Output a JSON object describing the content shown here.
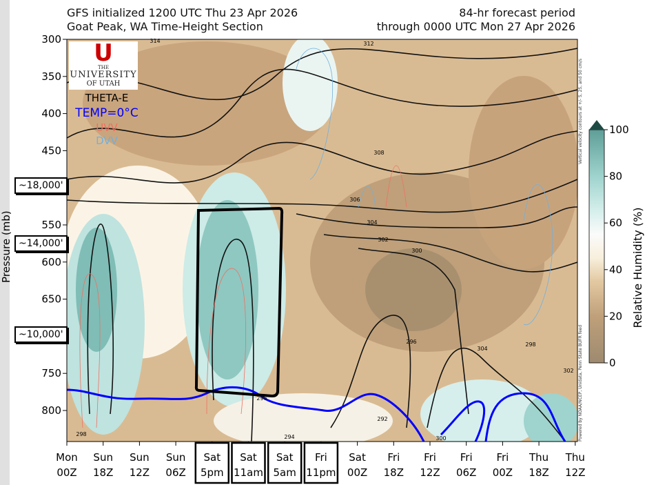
{
  "header": {
    "left_line1": "GFS initialized 1200 UTC Thu 23 Apr 2026",
    "left_line2": "Goat Peak, WA Time-Height Section",
    "right_line1": "84-hr forecast period",
    "right_line2": "through 0000 UTC Mon 27 Apr 2026"
  },
  "logo": {
    "line1": "THE",
    "line2": "UNIVERSITY",
    "line3": "OF UTAH"
  },
  "legend": {
    "theta_e": "THETA-E",
    "temp0": "TEMP=0°C",
    "uvv": "UVV",
    "dvv": "DVV",
    "colors": {
      "theta_e": "#000000",
      "temp0": "#0000ff",
      "uvv": "#f07060",
      "dvv": "#70b0e0"
    }
  },
  "annotations": [
    "~18,000'",
    "~14,000'",
    "~10,000'"
  ],
  "side_notes": {
    "vertical_velocity": "Vertical velocity contours at +/- 5, 25, and 50 cm/s",
    "credits": "Powered by NOAA/NCEP, Unidata, Penn State BUFR feed"
  },
  "chart_data": {
    "type": "heatmap",
    "title": "Goat Peak, WA Time-Height Section",
    "ylabel": "Pressure (mb)",
    "ylim": [
      845,
      300
    ],
    "yticks": [
      300,
      350,
      400,
      450,
      500,
      550,
      600,
      650,
      700,
      750,
      800
    ],
    "ytick_labels": [
      "300",
      "350",
      "400",
      "450",
      "",
      "550",
      "600",
      "650",
      "",
      "750",
      "800"
    ],
    "x_tick_labels": [
      [
        "Mon",
        "00Z"
      ],
      [
        "Sun",
        "18Z"
      ],
      [
        "Sun",
        "12Z"
      ],
      [
        "Sun",
        "06Z"
      ],
      [
        "Sat",
        "5pm"
      ],
      [
        "Sat",
        "11am"
      ],
      [
        "Sat",
        "5am"
      ],
      [
        "Fri",
        "11pm"
      ],
      [
        "Sat",
        "00Z"
      ],
      [
        "Fri",
        "18Z"
      ],
      [
        "Fri",
        "12Z"
      ],
      [
        "Fri",
        "06Z"
      ],
      [
        "Fri",
        "00Z"
      ],
      [
        "Thu",
        "18Z"
      ],
      [
        "Thu",
        "12Z"
      ]
    ],
    "boxed_x_labels": [
      4,
      5,
      6,
      7
    ],
    "colorbar": {
      "label": "Relative Humidity (%)",
      "ticks": [
        0,
        20,
        40,
        60,
        80,
        100
      ],
      "range": [
        0,
        100
      ]
    },
    "theta_e_contour_labels": [
      "314",
      "312",
      "308",
      "306",
      "304",
      "302",
      "300",
      "298",
      "296",
      "294",
      "292",
      "300",
      "296",
      "298",
      "302",
      "304"
    ],
    "freezing_level_mb_by_tick": [
      775,
      785,
      790,
      790,
      775,
      778,
      790,
      800,
      790,
      830,
      860,
      800,
      780,
      800,
      830
    ]
  }
}
